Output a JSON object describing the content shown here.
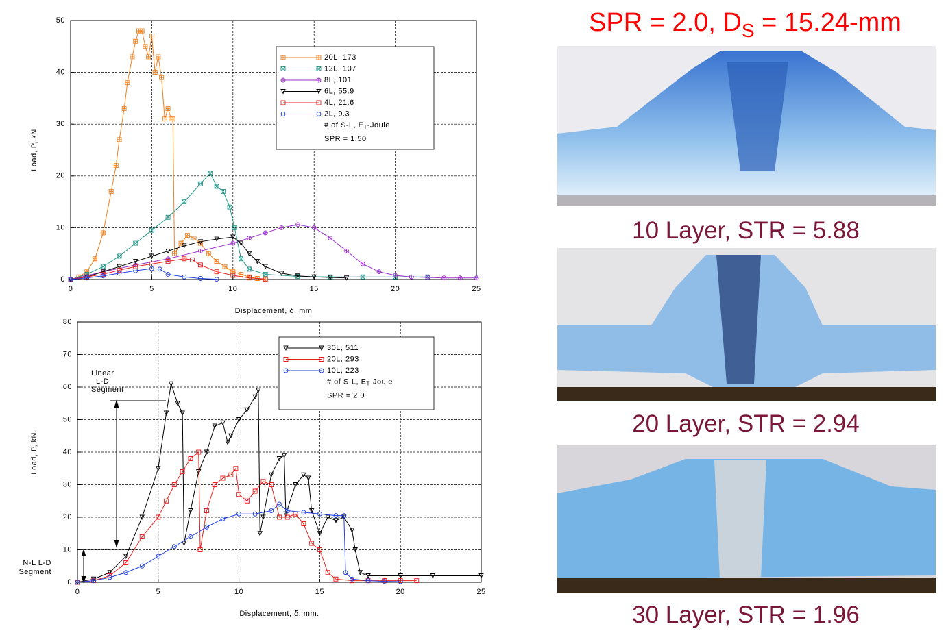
{
  "chart_data": [
    {
      "type": "line",
      "xlabel": "Displacement, δ, mm",
      "ylabel": "Load, P, kN",
      "xlim": [
        0,
        25
      ],
      "ylim": [
        0,
        50
      ],
      "xticks": [
        0,
        5,
        10,
        15,
        20,
        25
      ],
      "yticks": [
        0,
        10,
        20,
        30,
        40,
        50
      ],
      "grid": true,
      "legend": "upper-right",
      "legend_note": [
        "# of S-L, E",
        "T",
        "-Joule"
      ],
      "legend_extra": "SPR = 1.50",
      "series": [
        {
          "name": "20L, 173",
          "color": "#f07f1e",
          "marker": "square-plus",
          "x": [
            0,
            0.5,
            1,
            1.5,
            2,
            2.5,
            2.8,
            3,
            3.3,
            3.5,
            3.8,
            4,
            4.2,
            4.4,
            4.6,
            4.8,
            5,
            5.2,
            5.4,
            5.6,
            5.8,
            6,
            6.2,
            6.3,
            6.4,
            6.8,
            7.2,
            7.6,
            8,
            8.5,
            9,
            9.5,
            10,
            10.5,
            11,
            11.5,
            12
          ],
          "values": [
            0,
            0.5,
            1.5,
            4,
            9,
            17,
            22,
            27,
            33,
            38,
            43,
            46,
            48,
            48,
            45,
            43,
            47,
            40,
            43,
            39,
            31,
            33,
            31,
            31,
            5,
            7,
            8.5,
            8,
            7,
            5,
            3.5,
            2.5,
            1.5,
            1,
            0.5,
            0.2,
            0
          ]
        },
        {
          "name": "12L, 107",
          "color": "#2a9a8c",
          "marker": "square-x",
          "x": [
            0,
            1,
            2,
            3,
            4,
            5,
            6,
            7,
            8,
            8.6,
            9,
            9.4,
            9.8,
            10.1,
            10.5,
            11,
            12,
            14,
            16,
            18,
            20,
            22
          ],
          "values": [
            0,
            1,
            2.5,
            4.5,
            7,
            9.5,
            12,
            15,
            18.5,
            20.5,
            18,
            17,
            14,
            10,
            4,
            2,
            1,
            0.6,
            0.5,
            0.5,
            0.5,
            0.5
          ]
        },
        {
          "name": "8L, 101",
          "color": "#9a33c8",
          "marker": "circle-plus",
          "x": [
            0,
            2,
            4,
            6,
            8,
            10,
            11,
            12,
            13,
            14,
            15,
            16,
            17,
            18,
            19,
            20,
            21,
            22,
            23,
            24,
            25
          ],
          "values": [
            0,
            1.5,
            2.8,
            4,
            5.5,
            7,
            8,
            9,
            10,
            10.6,
            10,
            8,
            5.5,
            3,
            1.5,
            0.8,
            0.5,
            0.4,
            0.3,
            0.3,
            0.3
          ]
        },
        {
          "name": "6L, 55.9",
          "color": "#000000",
          "marker": "triangle-down",
          "x": [
            0,
            1,
            2,
            3,
            4,
            5,
            6,
            7,
            8,
            9,
            10,
            10.5,
            11,
            11.5,
            12,
            13,
            14,
            15,
            16,
            17
          ],
          "values": [
            0,
            0.5,
            1.5,
            2.5,
            3.5,
            4.5,
            5.5,
            6.5,
            7.3,
            7.8,
            8.2,
            7,
            5,
            3.5,
            2.5,
            1.2,
            0.7,
            0.5,
            0.4,
            0.3
          ]
        },
        {
          "name": "4L, 21.6",
          "color": "#e8201e",
          "marker": "square",
          "x": [
            0,
            1,
            2,
            3,
            4,
            5,
            6,
            7,
            7.5,
            8,
            9,
            10,
            11,
            12
          ],
          "values": [
            0,
            0.5,
            1,
            1.8,
            2.5,
            3,
            3.5,
            4,
            3.8,
            2.8,
            1.5,
            0.8,
            0.3,
            0.1
          ]
        },
        {
          "name": "2L, 9.3",
          "color": "#1f3fe0",
          "marker": "circle",
          "x": [
            0,
            1,
            2,
            3,
            4,
            5,
            5.5,
            6,
            7,
            8,
            9
          ],
          "values": [
            0,
            0.3,
            0.7,
            1.2,
            1.7,
            2.1,
            2,
            1,
            0.5,
            0.2,
            0.05
          ]
        }
      ]
    },
    {
      "type": "line",
      "xlabel": "Displacement, δ, mm.",
      "ylabel": "Load, P, kN.",
      "xlim": [
        0,
        25
      ],
      "ylim": [
        0,
        80
      ],
      "xticks": [
        0,
        5,
        10,
        15,
        20,
        25
      ],
      "yticks": [
        0,
        10,
        20,
        30,
        40,
        50,
        60,
        70,
        80
      ],
      "grid": true,
      "legend": "upper-right",
      "legend_note": [
        "# of S-L, E",
        "T",
        "-Joule"
      ],
      "legend_extra": "SPR = 2.0",
      "annotations": [
        [
          "Linear",
          "L-D",
          "Segment"
        ],
        [
          "N-L L-D",
          "Segment"
        ]
      ],
      "series": [
        {
          "name": "30L, 511",
          "color": "#000000",
          "marker": "triangle-down",
          "x": [
            0,
            1,
            2,
            3,
            4,
            5,
            5.5,
            5.8,
            6.2,
            6.5,
            6.6,
            7,
            7.5,
            8,
            8.5,
            9,
            9.3,
            9.5,
            10,
            10.5,
            11,
            11.2,
            11.3,
            11.5,
            12,
            12.5,
            12.8,
            12.9,
            13.5,
            14,
            14.3,
            14.5,
            15,
            15.5,
            16,
            16.5,
            17,
            17.2,
            17.5,
            18,
            20,
            22,
            25
          ],
          "values": [
            0,
            1,
            3,
            8,
            20,
            35,
            52,
            61,
            55,
            52,
            12,
            22,
            34,
            40,
            48,
            49,
            43,
            45,
            50,
            53,
            57,
            59,
            15,
            20,
            33,
            38,
            39,
            21,
            30,
            33,
            32,
            22,
            15,
            20,
            19,
            20,
            16,
            10,
            3,
            2,
            2,
            2,
            2
          ]
        },
        {
          "name": "20L, 293",
          "color": "#e8201e",
          "marker": "square",
          "x": [
            0,
            1,
            2,
            3,
            4,
            5,
            5.5,
            6,
            6.5,
            7,
            7.5,
            7.6,
            8,
            8.5,
            9,
            9.5,
            9.8,
            10,
            10.5,
            11,
            11.5,
            12,
            12.5,
            13,
            13.5,
            14,
            14.5,
            15,
            15.5,
            16,
            17,
            18,
            19,
            20,
            21
          ],
          "values": [
            0,
            0.5,
            2,
            6,
            14,
            20,
            25,
            30,
            34,
            38,
            40,
            10,
            22,
            30,
            32,
            33,
            35,
            27,
            25,
            28,
            31,
            30,
            20,
            20,
            21,
            18,
            12,
            10,
            3,
            1,
            0.5,
            0.5,
            0.5,
            0.5,
            0.5
          ]
        },
        {
          "name": "10L, 223",
          "color": "#1f3fe0",
          "marker": "circle",
          "x": [
            0,
            1,
            2,
            3,
            4,
            5,
            6,
            7,
            8,
            9,
            10,
            11,
            12,
            12.5,
            13,
            14,
            15,
            16,
            16.5,
            16.6,
            17,
            18,
            19,
            20
          ],
          "values": [
            0,
            0.5,
            1.5,
            3,
            5,
            8,
            11,
            14,
            17,
            19.5,
            21,
            21,
            22,
            24,
            22,
            21.5,
            21,
            20.5,
            20.5,
            3,
            1,
            0.5,
            0.3,
            0.2
          ]
        }
      ]
    }
  ],
  "heading": [
    "SPR = 2.0, D",
    "S",
    " = 15.24-mm"
  ],
  "photos": [
    {
      "caption": "10 Layer, STR = 5.88"
    },
    {
      "caption": "20 Layer, STR = 2.94"
    },
    {
      "caption": "30 Layer, STR = 1.96"
    }
  ]
}
